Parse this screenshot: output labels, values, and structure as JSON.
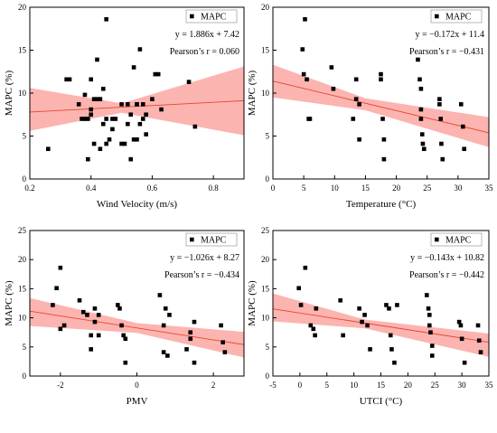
{
  "chart_data": [
    {
      "type": "scatter",
      "panel": "top-left",
      "xlabel": "Wind Velocity (m/s)",
      "ylabel": "MAPC (%)",
      "xlim": [
        0.2,
        0.9
      ],
      "ylim": [
        0,
        20
      ],
      "xticks": [
        0.2,
        0.4,
        0.6,
        0.8
      ],
      "xtick_labels": [
        "0.2",
        "0.4",
        "0.6",
        "0.8"
      ],
      "yticks": [
        0,
        5,
        10,
        15,
        20
      ],
      "ytick_labels": [
        "0",
        "5",
        "10",
        "15",
        "20"
      ],
      "legend": "MAPC",
      "legend_position": "top-right",
      "equation": "y = 1.886x + 7.42",
      "pearson": "Pearson’s r = 0.060",
      "fit": {
        "slope": 1.886,
        "intercept": 7.42
      },
      "ci_band": {
        "x": [
          0.2,
          0.5,
          0.9
        ],
        "lower": [
          5.6,
          7.7,
          5.1
        ],
        "upper": [
          10.6,
          8.8,
          13.1
        ]
      },
      "series": [
        {
          "name": "MAPC",
          "x": [
            0.26,
            0.32,
            0.33,
            0.36,
            0.37,
            0.38,
            0.38,
            0.39,
            0.39,
            0.4,
            0.4,
            0.4,
            0.41,
            0.41,
            0.42,
            0.42,
            0.43,
            0.43,
            0.44,
            0.44,
            0.45,
            0.45,
            0.45,
            0.46,
            0.47,
            0.47,
            0.48,
            0.5,
            0.5,
            0.51,
            0.52,
            0.52,
            0.53,
            0.53,
            0.54,
            0.54,
            0.55,
            0.55,
            0.55,
            0.56,
            0.56,
            0.57,
            0.57,
            0.58,
            0.58,
            0.6,
            0.61,
            0.62,
            0.63,
            0.72,
            0.74
          ],
          "y": [
            3.5,
            11.6,
            11.6,
            8.7,
            7.0,
            9.8,
            7.0,
            7.0,
            2.3,
            8.1,
            7.5,
            11.6,
            9.3,
            4.1,
            9.3,
            13.9,
            9.3,
            3.5,
            10.5,
            6.4,
            18.6,
            7.0,
            4.1,
            4.6,
            7.0,
            5.8,
            7.0,
            8.7,
            4.1,
            4.1,
            6.4,
            8.7,
            7.5,
            2.3,
            13.0,
            4.6,
            8.7,
            8.7,
            4.6,
            15.1,
            6.4,
            7.0,
            8.7,
            7.5,
            5.2,
            9.3,
            12.2,
            12.2,
            8.1,
            11.3,
            6.1
          ]
        }
      ]
    },
    {
      "type": "scatter",
      "panel": "top-right",
      "xlabel": "Temperature (°C)",
      "ylabel": "MAPC (%)",
      "xlim": [
        0,
        35
      ],
      "ylim": [
        0,
        20
      ],
      "xticks": [
        0,
        5,
        10,
        15,
        20,
        25,
        30,
        35
      ],
      "xtick_labels": [
        "0",
        "5",
        "10",
        "15",
        "20",
        "25",
        "30",
        "35"
      ],
      "yticks": [
        0,
        5,
        10,
        15,
        20
      ],
      "ytick_labels": [
        "0",
        "5",
        "10",
        "15",
        "20"
      ],
      "legend": "MAPC",
      "legend_position": "top-right",
      "equation": "y = −0.172x + 11.4",
      "pearson": "Pearson’s r = −0.431",
      "fit": {
        "slope": -0.172,
        "intercept": 11.4
      },
      "ci_band": {
        "x": [
          0,
          15,
          35
        ],
        "lower": [
          9.5,
          8.0,
          3.7
        ],
        "upper": [
          13.3,
          9.4,
          7.2
        ]
      },
      "series": [
        {
          "name": "MAPC",
          "x": [
            4.8,
            5.0,
            5.2,
            5.5,
            5.8,
            6.0,
            9.5,
            9.8,
            13.0,
            13.5,
            13.5,
            14.0,
            14.0,
            17.5,
            17.5,
            17.8,
            18.0,
            18.0,
            23.5,
            23.8,
            24.0,
            24.0,
            24.0,
            24.2,
            24.3,
            24.5,
            27.0,
            27.0,
            27.2,
            27.3,
            27.5,
            30.5,
            30.8,
            31.0
          ],
          "y": [
            15.1,
            12.2,
            18.6,
            11.6,
            7.0,
            7.0,
            13.0,
            10.5,
            7.0,
            11.6,
            9.3,
            8.7,
            4.6,
            12.2,
            11.6,
            7.0,
            4.6,
            2.3,
            13.9,
            11.6,
            10.5,
            8.1,
            7.0,
            5.2,
            4.1,
            3.5,
            9.3,
            8.7,
            7.0,
            4.1,
            2.3,
            8.7,
            6.1,
            3.5
          ]
        }
      ]
    },
    {
      "type": "scatter",
      "panel": "bottom-left",
      "xlabel": "PMV",
      "ylabel": "MAPC (%)",
      "xlim": [
        -2.8,
        2.8
      ],
      "ylim": [
        0,
        25
      ],
      "xticks": [
        -2,
        0,
        2
      ],
      "xtick_labels": [
        "-2",
        "0",
        "2"
      ],
      "yticks": [
        0,
        5,
        10,
        15,
        20,
        25
      ],
      "ytick_labels": [
        "0",
        "5",
        "10",
        "15",
        "20",
        "25"
      ],
      "legend": "MAPC",
      "legend_position": "top-right",
      "equation": "y = −1.026x + 8.27",
      "pearson": "Pearson’s r = −0.434",
      "fit": {
        "slope": -1.026,
        "intercept": 8.27
      },
      "ci_band": {
        "x": [
          -2.8,
          0,
          2.8
        ],
        "lower": [
          8.6,
          7.4,
          3.2
        ],
        "upper": [
          13.4,
          9.1,
          7.6
        ]
      },
      "series": [
        {
          "name": "MAPC",
          "x": [
            -2.2,
            -2.1,
            -2.0,
            -2.0,
            -1.9,
            -1.5,
            -1.4,
            -1.3,
            -1.2,
            -1.2,
            -1.1,
            -1.1,
            -1.0,
            -1.0,
            -0.5,
            -0.45,
            -0.4,
            -0.35,
            -0.3,
            -0.3,
            0.6,
            0.7,
            0.7,
            0.75,
            0.8,
            0.85,
            1.3,
            1.4,
            1.4,
            1.5,
            1.5,
            2.2,
            2.25,
            2.3
          ],
          "y": [
            12.2,
            15.1,
            18.6,
            8.1,
            8.7,
            13.0,
            11.0,
            10.5,
            7.0,
            4.6,
            9.3,
            11.6,
            7.0,
            10.5,
            12.2,
            11.6,
            8.7,
            7.0,
            6.4,
            2.3,
            13.9,
            8.7,
            4.1,
            11.6,
            3.5,
            10.5,
            4.6,
            7.5,
            6.4,
            9.3,
            2.3,
            8.7,
            5.8,
            4.1
          ]
        }
      ]
    },
    {
      "type": "scatter",
      "panel": "bottom-right",
      "xlabel": "UTCI (°C)",
      "ylabel": "MAPC (%)",
      "xlim": [
        -5,
        35
      ],
      "ylim": [
        0,
        25
      ],
      "xticks": [
        -5,
        0,
        5,
        10,
        15,
        20,
        25,
        30,
        35
      ],
      "xtick_labels": [
        "-5",
        "0",
        "5",
        "10",
        "15",
        "20",
        "25",
        "30",
        "35"
      ],
      "yticks": [
        0,
        5,
        10,
        15,
        20,
        25
      ],
      "ytick_labels": [
        "0",
        "5",
        "10",
        "15",
        "20",
        "25"
      ],
      "legend": "MAPC",
      "legend_position": "top-right",
      "equation": "y = −0.143x + 10.82",
      "pearson": "Pearson’s r = −0.442",
      "fit": {
        "slope": -0.143,
        "intercept": 10.82
      },
      "ci_band": {
        "x": [
          -5,
          12,
          35
        ],
        "lower": [
          9.4,
          8.2,
          3.3
        ],
        "upper": [
          14.2,
          9.7,
          7.3
        ]
      },
      "series": [
        {
          "name": "MAPC",
          "x": [
            -0.2,
            0.2,
            1.0,
            2.0,
            2.5,
            2.8,
            3.0,
            7.5,
            8.0,
            11.0,
            11.5,
            12.0,
            12.5,
            13.0,
            16.0,
            16.5,
            16.8,
            17.0,
            17.5,
            18.0,
            23.5,
            23.8,
            24.0,
            24.0,
            24.2,
            24.5,
            24.5,
            29.5,
            29.8,
            30.0,
            30.5,
            33.0,
            33.2,
            33.5
          ],
          "y": [
            15.1,
            12.2,
            18.6,
            8.7,
            8.1,
            7.0,
            11.6,
            13.0,
            7.0,
            11.6,
            9.3,
            10.5,
            8.7,
            4.6,
            12.2,
            11.6,
            7.0,
            4.6,
            2.3,
            12.2,
            13.9,
            11.6,
            10.5,
            8.7,
            7.5,
            5.2,
            3.5,
            9.3,
            8.7,
            6.4,
            2.3,
            8.7,
            6.1,
            4.1
          ]
        }
      ]
    }
  ]
}
